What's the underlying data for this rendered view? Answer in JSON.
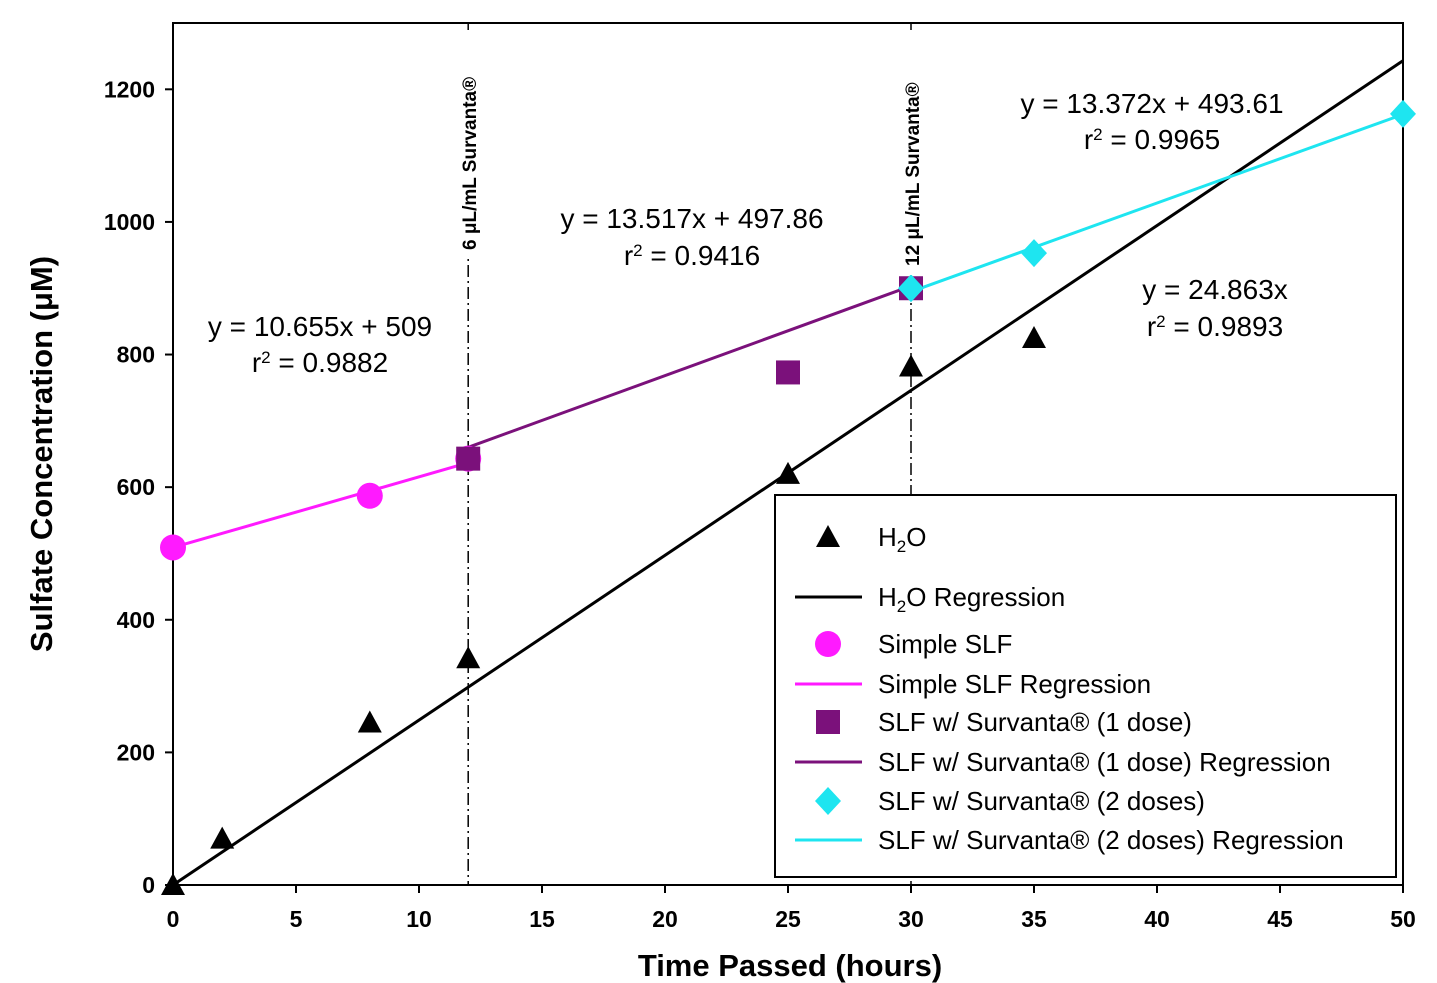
{
  "chart_data": {
    "type": "scatter",
    "xlabel": "Time Passed (hours)",
    "ylabel": "Sulfate Concentration (μM)",
    "xlim": [
      0,
      50
    ],
    "ylim": [
      0,
      1300
    ],
    "x_ticks": [
      0,
      5,
      10,
      15,
      20,
      25,
      30,
      35,
      40,
      45,
      50
    ],
    "y_ticks": [
      0,
      200,
      400,
      600,
      800,
      1000,
      1200
    ],
    "grid": false,
    "legend_position": "bottom-right",
    "series": [
      {
        "name": "H₂O",
        "marker": "triangle",
        "color": "#000000",
        "points": [
          [
            0,
            0
          ],
          [
            2,
            70
          ],
          [
            8,
            245
          ],
          [
            12,
            342
          ],
          [
            25,
            620
          ],
          [
            30,
            782
          ],
          [
            35,
            825
          ]
        ]
      },
      {
        "name": "Simple SLF",
        "marker": "circle",
        "color": "#ff1aff",
        "points": [
          [
            0,
            509
          ],
          [
            8,
            587
          ],
          [
            12,
            643
          ]
        ]
      },
      {
        "name": "SLF w/ Survanta® (1 dose)",
        "marker": "square",
        "color": "#7b117b",
        "points": [
          [
            12,
            643
          ],
          [
            25,
            773
          ],
          [
            30,
            900
          ]
        ]
      },
      {
        "name": "SLF w/ Survanta® (2 doses)",
        "marker": "diamond",
        "color": "#1ee5f0",
        "points": [
          [
            30,
            900
          ],
          [
            35,
            953
          ],
          [
            50,
            1163
          ]
        ]
      }
    ],
    "regressions": [
      {
        "name": "H₂O Regression",
        "color": "#000000",
        "slope": 24.863,
        "intercept": 0,
        "x_range": [
          0,
          50
        ],
        "equation": "y = 24.863x",
        "r2_label": "r",
        "r2_exp": "2",
        "r2_value": " = 0.9893"
      },
      {
        "name": "Simple SLF Regression",
        "color": "#ff1aff",
        "slope": 10.655,
        "intercept": 509,
        "x_range": [
          0,
          12
        ],
        "equation": "y = 10.655x + 509",
        "r2_label": "r",
        "r2_exp": "2",
        "r2_value": " = 0.9882"
      },
      {
        "name": "SLF w/ Survanta® (1 dose) Regression",
        "color": "#7b117b",
        "slope": 13.517,
        "intercept": 497.86,
        "x_range": [
          12,
          30
        ],
        "equation": "y = 13.517x + 497.86",
        "r2_label": "r",
        "r2_exp": "2",
        "r2_value": " = 0.9416"
      },
      {
        "name": "SLF w/ Survanta® (2 doses) Regression",
        "color": "#1ee5f0",
        "slope": 13.372,
        "intercept": 493.61,
        "x_range": [
          30,
          50
        ],
        "equation": "y = 13.372x + 493.61",
        "r2_label": "r",
        "r2_exp": "2",
        "r2_value": " = 0.9965"
      }
    ],
    "annotations": [
      {
        "x": 12,
        "text": "6 μL/mL Survanta®"
      },
      {
        "x": 30,
        "text": "12 μL/mL Survanta®"
      }
    ]
  }
}
